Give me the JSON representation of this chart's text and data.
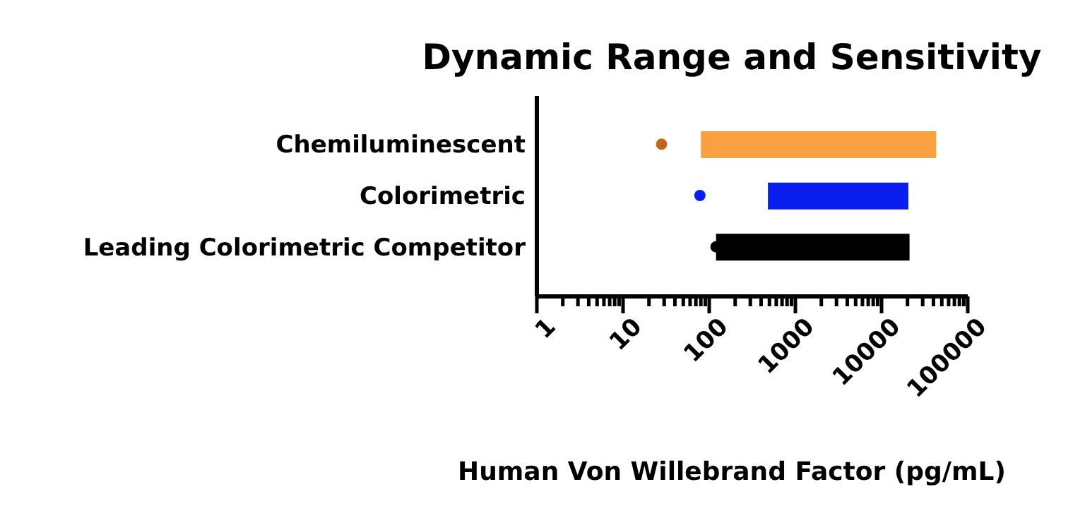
{
  "chart_data": {
    "type": "bar",
    "orientation": "horizontal",
    "title": "Dynamic Range and Sensitivity",
    "xlabel": "Human Von Willebrand Factor (pg/mL)",
    "categories": [
      "Chemiluminescent",
      "Colorimetric",
      "Leading Colorimetric Competitor"
    ],
    "series": [
      {
        "type": "bar",
        "base": [
          80,
          480,
          120
        ],
        "values": [
          43000,
          20000,
          21000
        ],
        "colors": [
          "#f9a040",
          "#0a1ef0",
          "#000000"
        ]
      },
      {
        "type": "scatter",
        "x": [
          "Chemiluminescent",
          "Colorimetric",
          "Leading Colorimetric Competitor"
        ],
        "values": [
          28,
          78,
          120
        ],
        "colors": [
          "#c0661a",
          "#0a1ef0",
          "#000000"
        ]
      }
    ],
    "log": "x",
    "xlim": [
      1,
      100000
    ],
    "xticks": [
      1,
      {
        "value": 2,
        "label": null
      },
      {
        "value": 3,
        "label": null
      },
      {
        "value": 4,
        "label": null
      },
      {
        "value": 5,
        "label": null
      },
      {
        "value": 6,
        "label": null
      },
      {
        "value": 7,
        "label": null
      },
      {
        "value": 8,
        "label": null
      },
      {
        "value": 9,
        "label": null
      },
      10,
      {
        "value": 20,
        "label": null
      },
      {
        "value": 30,
        "label": null
      },
      {
        "value": 40,
        "label": null
      },
      {
        "value": 50,
        "label": null
      },
      {
        "value": 60,
        "label": null
      },
      {
        "value": 70,
        "label": null
      },
      {
        "value": 80,
        "label": null
      },
      {
        "value": 90,
        "label": null
      },
      100,
      {
        "value": 200,
        "label": null
      },
      {
        "value": 300,
        "label": null
      },
      {
        "value": 400,
        "label": null
      },
      {
        "value": 500,
        "label": null
      },
      {
        "value": 600,
        "label": null
      },
      {
        "value": 700,
        "label": null
      },
      {
        "value": 800,
        "label": null
      },
      {
        "value": 900,
        "label": null
      },
      1000,
      {
        "value": 2000,
        "label": null
      },
      {
        "value": 3000,
        "label": null
      },
      {
        "value": 4000,
        "label": null
      },
      {
        "value": 5000,
        "label": null
      },
      {
        "value": 6000,
        "label": null
      },
      {
        "value": 7000,
        "label": null
      },
      {
        "value": 8000,
        "label": null
      },
      {
        "value": 9000,
        "label": null
      },
      10000,
      {
        "value": 20000,
        "label": null
      },
      {
        "value": 30000,
        "label": null
      },
      {
        "value": 40000,
        "label": null
      },
      {
        "value": 50000,
        "label": null
      },
      {
        "value": 60000,
        "label": null
      },
      {
        "value": 70000,
        "label": null
      },
      {
        "value": 80000,
        "label": null
      },
      {
        "value": 90000,
        "label": null
      },
      100000
    ],
    "grid": false
  }
}
